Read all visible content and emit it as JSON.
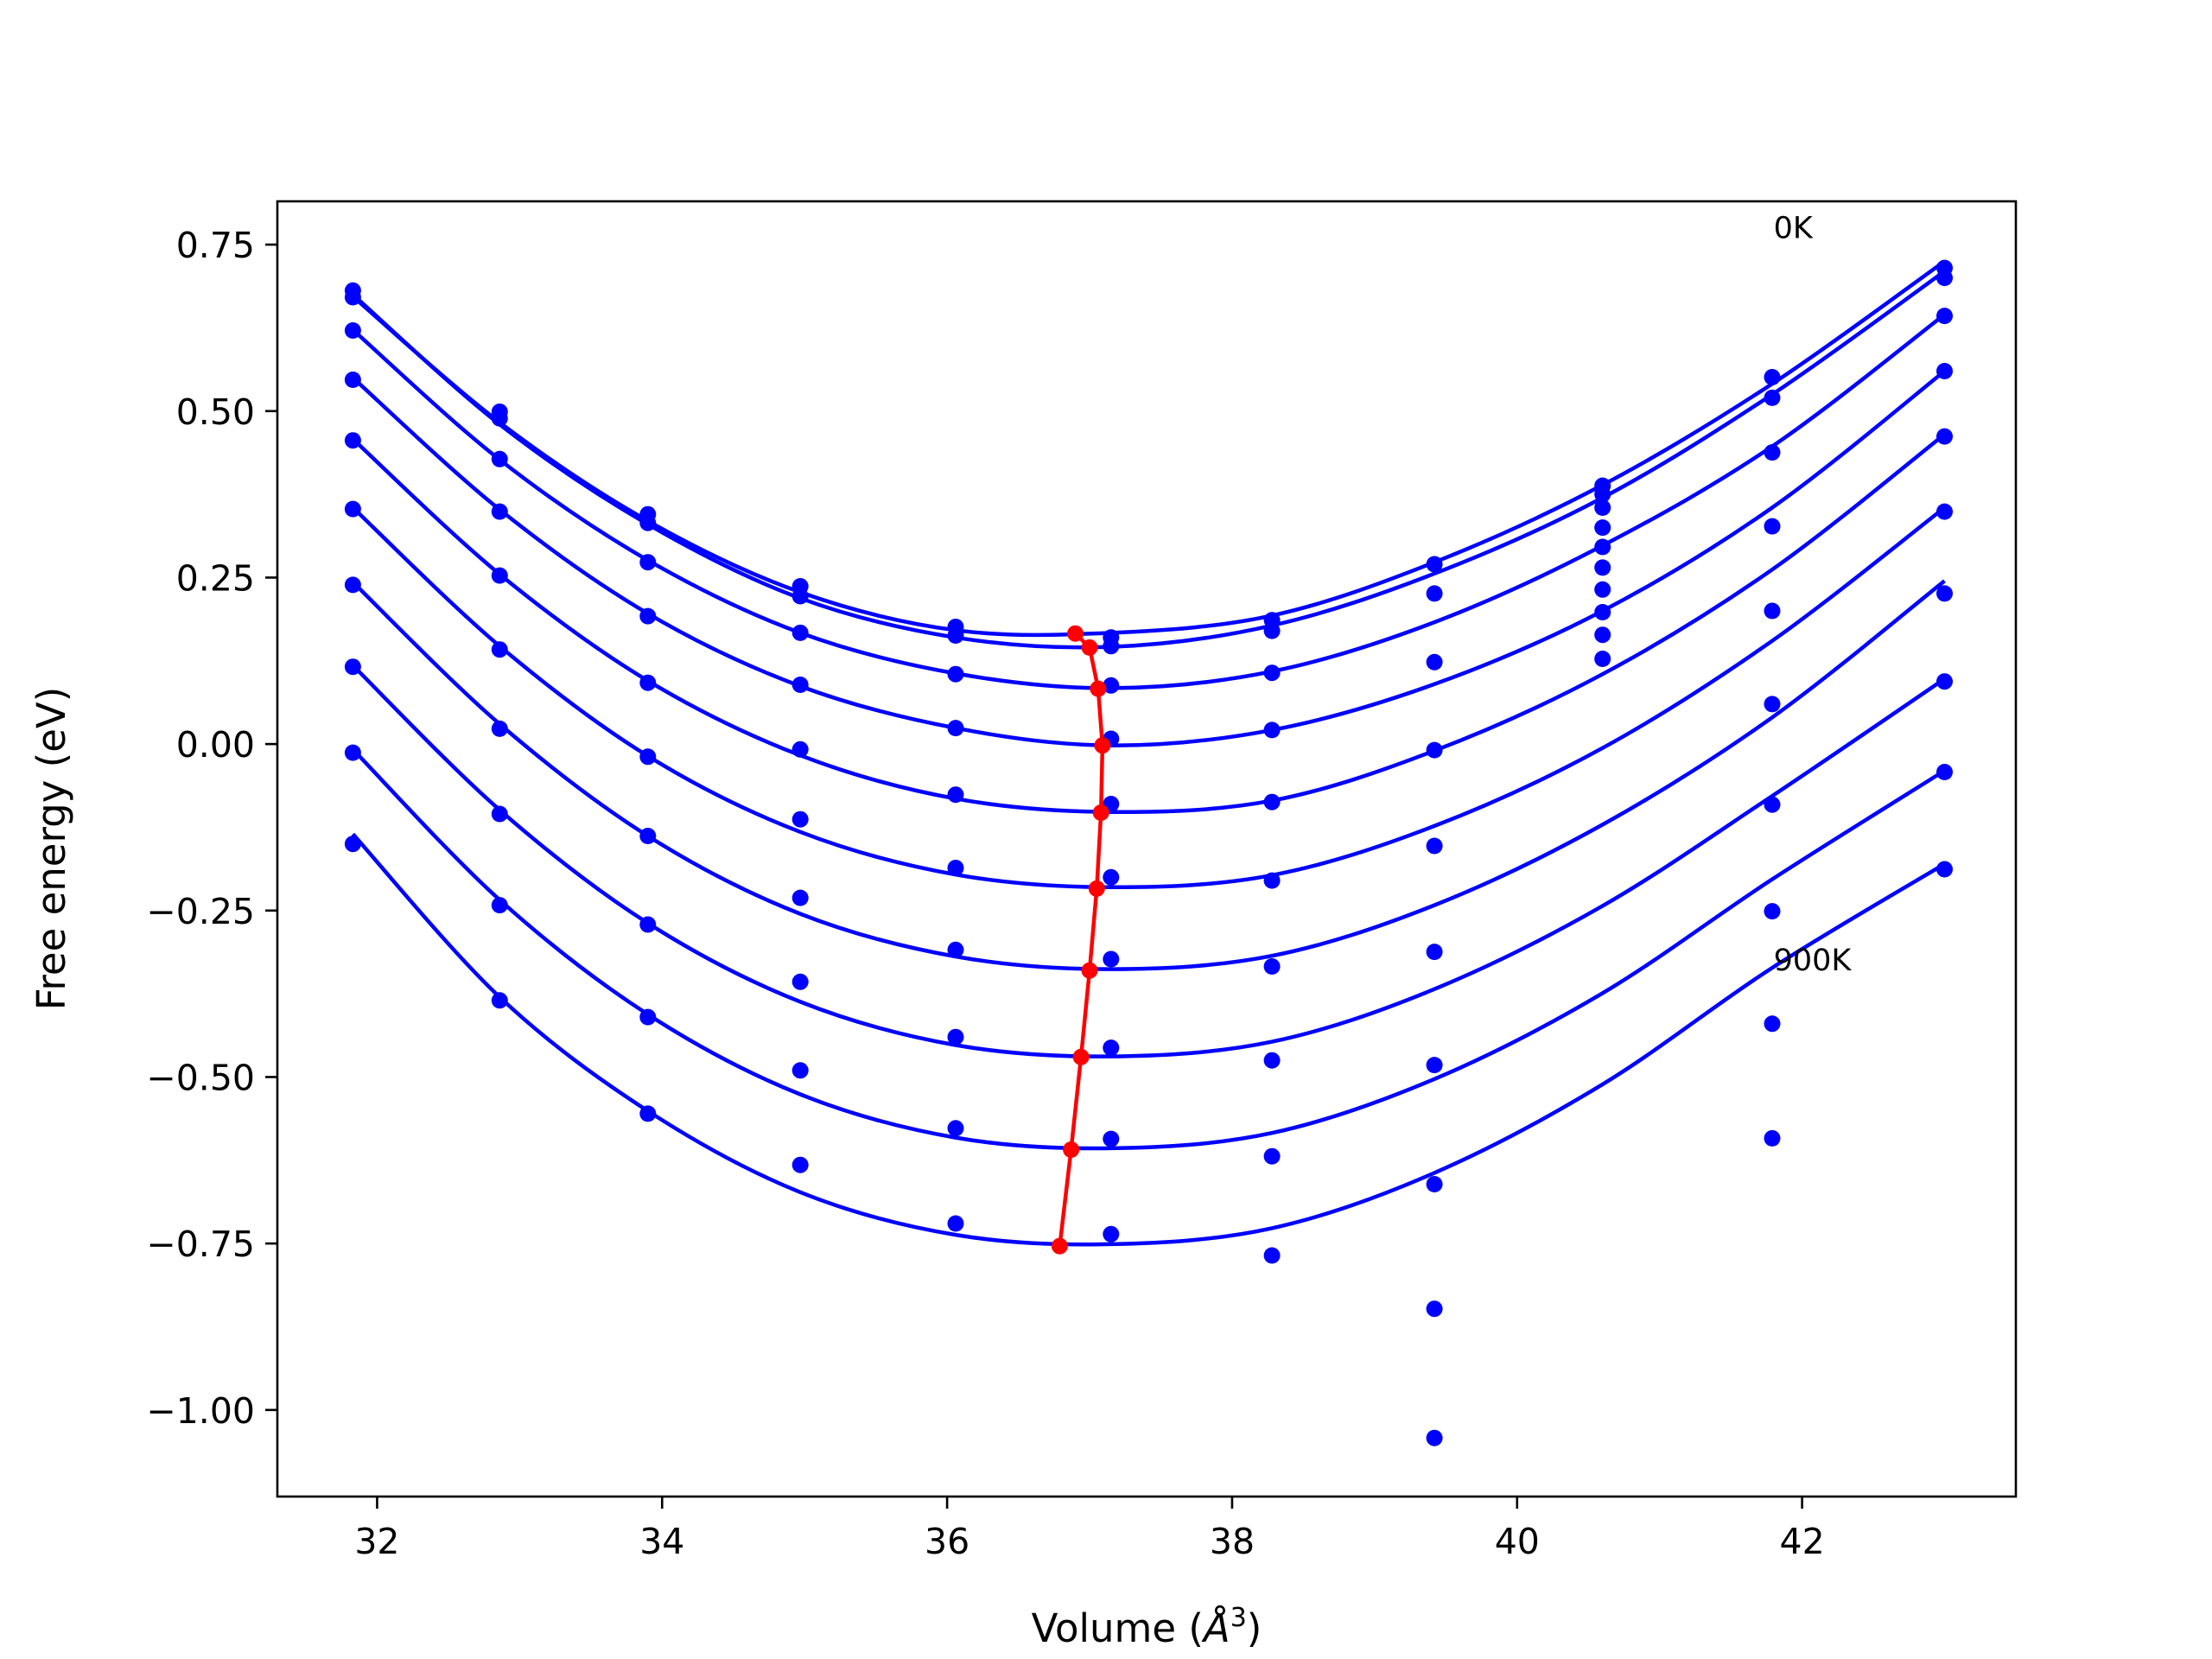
{
  "chart_data": {
    "type": "line",
    "title": "",
    "xlabel_parts": [
      "Volume (",
      "Å",
      "3",
      ")"
    ],
    "ylabel": "Free energy (eV)",
    "xlim": [
      31.3,
      43.5
    ],
    "ylim": [
      -1.13,
      0.815
    ],
    "xticks": [
      32,
      34,
      36,
      38,
      40,
      42
    ],
    "xtick_labels": [
      "32",
      "34",
      "36",
      "38",
      "40",
      "42"
    ],
    "yticks": [
      0.75,
      0.5,
      0.25,
      0.0,
      -0.25,
      -0.5,
      -0.75,
      -1.0
    ],
    "ytick_labels": [
      "0.75",
      "0.50",
      "0.25",
      "0.00",
      "−0.25",
      "−0.50",
      "−0.75",
      "−1.00"
    ],
    "grid": false,
    "annotations": [
      {
        "text": "0K",
        "x": 41.8,
        "y": 0.76
      },
      {
        "text": "900K",
        "x": 41.8,
        "y": -0.34
      }
    ],
    "fit_color": "#0000ff",
    "point_color": "#0000ff",
    "min_color": "#ff0000",
    "fit_curves": [
      {
        "x": [
          31.83,
          32.86,
          33.9,
          34.97,
          36.06,
          37.15,
          38.28,
          39.42,
          40.6,
          41.79,
          43.0
        ],
        "y": [
          0.672,
          0.483,
          0.335,
          0.228,
          0.171,
          0.167,
          0.193,
          0.273,
          0.389,
          0.541,
          0.725
        ]
      },
      {
        "x": [
          31.83,
          32.86,
          33.9,
          34.97,
          36.06,
          37.15,
          38.28,
          39.42,
          40.6,
          41.79,
          43.0
        ],
        "y": [
          0.675,
          0.48,
          0.33,
          0.219,
          0.16,
          0.146,
          0.178,
          0.256,
          0.37,
          0.525,
          0.71
        ]
      },
      {
        "x": [
          31.83,
          32.86,
          33.9,
          34.97,
          36.06,
          37.15,
          38.28,
          39.42,
          40.6,
          41.79,
          43.0
        ],
        "y": [
          0.622,
          0.427,
          0.276,
          0.167,
          0.106,
          0.084,
          0.109,
          0.183,
          0.298,
          0.447,
          0.645
        ]
      },
      {
        "x": [
          31.83,
          32.86,
          33.9,
          34.97,
          36.06,
          37.15,
          38.28,
          39.42,
          40.6,
          41.79,
          43.0
        ],
        "y": [
          0.55,
          0.352,
          0.196,
          0.087,
          0.024,
          -0.002,
          0.021,
          0.09,
          0.2,
          0.355,
          0.56
        ]
      },
      {
        "x": [
          31.83,
          32.86,
          33.9,
          34.97,
          36.06,
          37.15,
          38.28,
          39.42,
          40.6,
          41.79,
          43.0
        ],
        "y": [
          0.458,
          0.255,
          0.095,
          -0.017,
          -0.082,
          -0.102,
          -0.085,
          -0.01,
          0.105,
          0.262,
          0.465
        ]
      },
      {
        "x": [
          31.83,
          32.86,
          33.9,
          34.97,
          36.06,
          37.15,
          38.28,
          39.42,
          40.6,
          41.79,
          43.0
        ],
        "y": [
          0.355,
          0.147,
          -0.018,
          -0.132,
          -0.196,
          -0.215,
          -0.197,
          -0.123,
          -0.006,
          0.155,
          0.355
        ]
      },
      {
        "x": [
          31.83,
          32.86,
          33.9,
          34.97,
          36.06,
          37.15,
          38.28,
          39.42,
          40.6,
          41.79,
          43.0
        ],
        "y": [
          0.243,
          0.03,
          -0.138,
          -0.255,
          -0.319,
          -0.338,
          -0.318,
          -0.242,
          -0.121,
          0.04,
          0.245
        ]
      },
      {
        "x": [
          31.83,
          32.86,
          33.9,
          34.97,
          36.06,
          37.15,
          38.28,
          39.42,
          40.6,
          41.79,
          43.0
        ],
        "y": [
          0.118,
          -0.099,
          -0.269,
          -0.387,
          -0.452,
          -0.469,
          -0.447,
          -0.368,
          -0.243,
          -0.078,
          0.098
        ]
      },
      {
        "x": [
          31.83,
          32.86,
          33.9,
          34.97,
          36.06,
          37.15,
          38.28,
          39.42,
          40.6,
          41.79,
          43.0
        ],
        "y": [
          -0.008,
          -0.234,
          -0.406,
          -0.526,
          -0.591,
          -0.607,
          -0.584,
          -0.503,
          -0.374,
          -0.203,
          -0.04
        ]
      },
      {
        "x": [
          31.83,
          32.86,
          33.9,
          34.97,
          36.06,
          37.15,
          38.28,
          39.42,
          40.6,
          41.79,
          43.0
        ],
        "y": [
          -0.135,
          -0.38,
          -0.551,
          -0.673,
          -0.737,
          -0.751,
          -0.727,
          -0.644,
          -0.511,
          -0.336,
          -0.18
        ]
      }
    ],
    "data_points": [
      {
        "x": 31.83,
        "y": [
          0.681,
          0.671,
          0.621,
          0.547,
          0.456,
          0.353,
          0.239,
          0.116,
          -0.013,
          -0.15
        ]
      },
      {
        "x": 32.86,
        "y": [
          0.499,
          0.489,
          0.428,
          0.349,
          0.253,
          0.142,
          0.023,
          -0.105,
          -0.242,
          -0.385
        ]
      },
      {
        "x": 33.9,
        "y": [
          0.345,
          0.332,
          0.273,
          0.192,
          0.092,
          -0.019,
          -0.138,
          -0.271,
          -0.41,
          -0.555
        ]
      },
      {
        "x": 34.97,
        "y": [
          0.237,
          0.222,
          0.167,
          0.089,
          -0.008,
          -0.113,
          -0.231,
          -0.357,
          -0.49,
          -0.632
        ]
      },
      {
        "x": 36.06,
        "y": [
          0.176,
          0.163,
          0.105,
          0.024,
          -0.076,
          -0.186,
          -0.309,
          -0.44,
          -0.577,
          -0.72
        ]
      },
      {
        "x": 37.15,
        "y": [
          0.16,
          0.147,
          0.088,
          0.008,
          -0.09,
          -0.2,
          -0.323,
          -0.456,
          -0.593,
          -0.736
        ]
      },
      {
        "x": 38.28,
        "y": [
          0.186,
          0.17,
          0.107,
          0.021,
          -0.087,
          -0.205,
          -0.334,
          -0.475,
          -0.619,
          -0.768
        ]
      },
      {
        "x": 39.42,
        "y": [
          0.27,
          0.226,
          0.123,
          -0.009,
          -0.153,
          -0.312,
          -0.482,
          -0.661,
          -0.848,
          -1.042
        ]
      },
      {
        "x": 40.6,
        "y": [
          0.388,
          0.375,
          0.355,
          0.325,
          0.296,
          0.265,
          0.232,
          0.198,
          0.164,
          0.128
        ]
      },
      {
        "x": 41.79,
        "y": [
          0.551,
          0.52,
          0.438,
          0.327,
          0.2,
          0.06,
          -0.091,
          -0.251,
          -0.42,
          -0.592
        ]
      },
      {
        "x": 43.0,
        "y": [
          0.715,
          0.7,
          0.643,
          0.56,
          0.462,
          0.349,
          0.226,
          0.094,
          -0.042,
          -0.188
        ]
      }
    ],
    "minimum_line": {
      "x": [
        36.9,
        37.0,
        37.06,
        37.09,
        37.08,
        37.05,
        37.0,
        36.94,
        36.87,
        36.79
      ],
      "y": [
        0.166,
        0.145,
        0.083,
        -0.002,
        -0.103,
        -0.217,
        -0.34,
        -0.47,
        -0.609,
        -0.754
      ]
    }
  }
}
